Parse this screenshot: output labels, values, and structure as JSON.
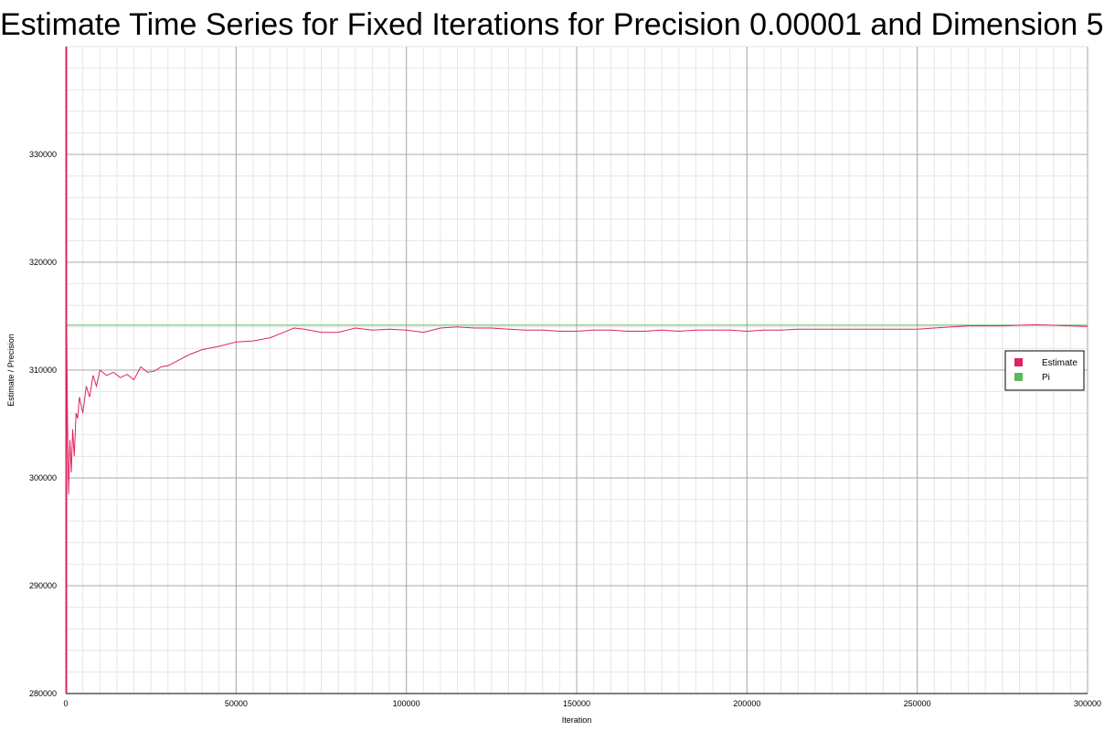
{
  "chart_data": {
    "type": "line",
    "title": "Estimate Time Series for Fixed Iterations for Precision 0.00001 and Dimension 5",
    "xlabel": "Iteration",
    "ylabel": "Estimate / Precision",
    "xlim": [
      0,
      300000
    ],
    "ylim": [
      280000,
      340000
    ],
    "x_ticks": [
      0,
      50000,
      100000,
      150000,
      200000,
      250000,
      300000
    ],
    "x_tick_labels": [
      "0",
      "50000",
      "100000",
      "150000",
      "200000",
      "250000",
      "300000"
    ],
    "y_ticks": [
      280000,
      290000,
      300000,
      310000,
      320000,
      330000
    ],
    "y_tick_labels": [
      "280000",
      "290000",
      "300000",
      "310000",
      "320000",
      "330000"
    ],
    "grid": true,
    "legend": {
      "placement": "right",
      "entries": [
        "Estimate",
        "Pi"
      ]
    },
    "series": [
      {
        "name": "Estimate",
        "color": "#e0245e",
        "x": [
          0,
          200,
          500,
          800,
          1200,
          1600,
          2000,
          2500,
          3000,
          3500,
          4000,
          5000,
          6000,
          7000,
          8000,
          9000,
          10000,
          12000,
          14000,
          16000,
          18000,
          20000,
          22000,
          24000,
          26000,
          28000,
          30000,
          33000,
          36000,
          40000,
          45000,
          50000,
          55000,
          60000,
          64000,
          67000,
          70000,
          75000,
          80000,
          85000,
          90000,
          95000,
          100000,
          105000,
          110000,
          115000,
          120000,
          125000,
          130000,
          135000,
          140000,
          145000,
          150000,
          155000,
          160000,
          165000,
          170000,
          175000,
          180000,
          185000,
          190000,
          195000,
          200000,
          205000,
          210000,
          215000,
          220000,
          225000,
          230000,
          235000,
          240000,
          245000,
          250000,
          255000,
          260000,
          265000,
          270000,
          275000,
          280000,
          285000,
          290000,
          295000,
          300000
        ],
        "values": [
          333000,
          316500,
          305000,
          298500,
          303500,
          300500,
          304500,
          302000,
          306000,
          305500,
          307500,
          306000,
          308500,
          307500,
          309500,
          308500,
          310000,
          309500,
          309800,
          309300,
          309600,
          309100,
          310300,
          309800,
          309900,
          310300,
          310400,
          310900,
          311400,
          311900,
          312200,
          312600,
          312700,
          313000,
          313500,
          313900,
          313800,
          313500,
          313500,
          313900,
          313700,
          313800,
          313700,
          313500,
          313900,
          314000,
          313900,
          313900,
          313800,
          313700,
          313700,
          313600,
          313600,
          313700,
          313700,
          313600,
          313600,
          313700,
          313600,
          313700,
          313700,
          313700,
          313600,
          313700,
          313700,
          313800,
          313800,
          313800,
          313800,
          313800,
          313800,
          313800,
          313800,
          313900,
          314000,
          314100,
          314100,
          314100,
          314150,
          314200,
          314150,
          314100,
          314050
        ]
      },
      {
        "name": "Pi",
        "color": "#5cb85c",
        "x": [
          0,
          300000
        ],
        "values": [
          314159,
          314159
        ]
      }
    ]
  }
}
